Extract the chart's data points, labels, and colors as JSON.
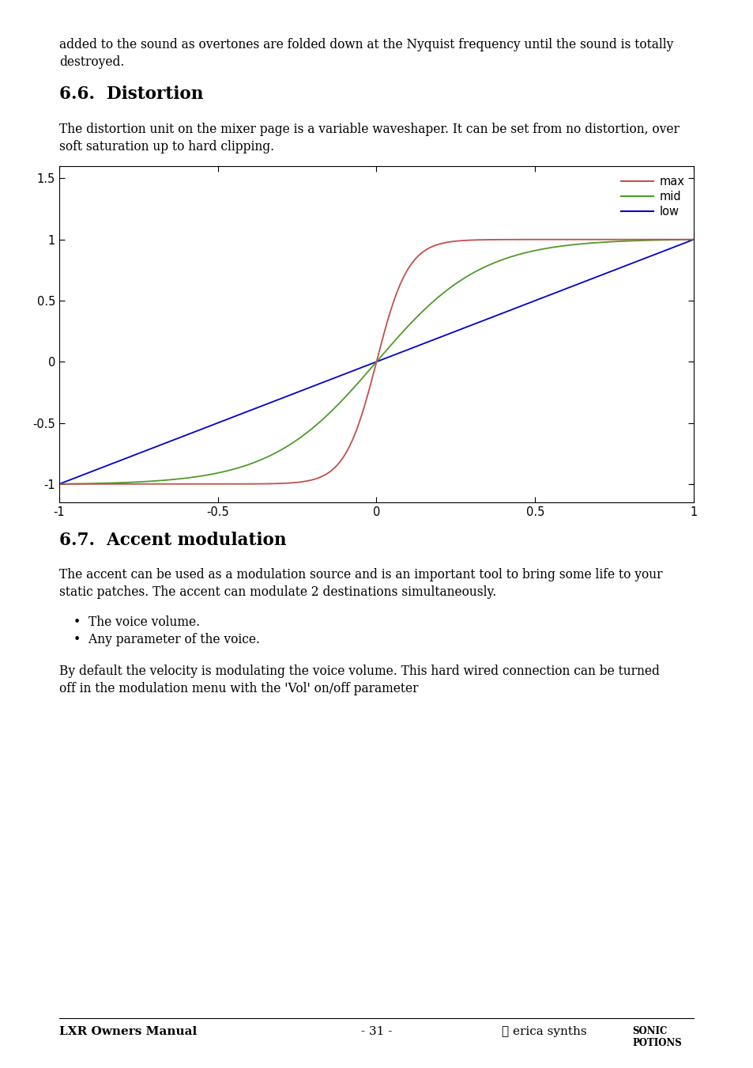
{
  "page_text_top_line1": "added to the sound as overtones are folded down at the Nyquist frequency until the sound is totally",
  "page_text_top_line2": "destroyed.",
  "section_66_title": "6.6.  Distortion",
  "section_66_body_line1": "The distortion unit on the mixer page is a variable waveshaper. It can be set from no distortion, over",
  "section_66_body_line2": "soft saturation up to hard clipping.",
  "section_67_title": "6.7.  Accent modulation",
  "section_67_body_line1": "The accent can be used as a modulation source and is an important tool to bring some life to your",
  "section_67_body_line2": "static patches. The accent can modulate 2 destinations simultaneously.",
  "bullet1": "The voice volume.",
  "bullet2": "Any parameter of the voice.",
  "section_67_body2_line1": "By default the velocity is modulating the voice volume. This hard wired connection can be turned",
  "section_67_body2_line2": "off in the modulation menu with the 'Vol' on/off parameter",
  "footer_left": "LXR Owners Manual",
  "footer_center": "- 31 -",
  "xlim": [
    -1,
    1
  ],
  "ylim": [
    -1.15,
    1.6
  ],
  "yticks": [
    -1,
    -0.5,
    0,
    0.5,
    1,
    1.5
  ],
  "xticks": [
    -1,
    -0.5,
    0,
    0.5,
    1
  ],
  "color_max": "#c0504d",
  "color_mid": "#4f9a29",
  "color_low": "#0000cd",
  "legend_labels": [
    "max",
    "mid",
    "low"
  ],
  "background": "#ffffff",
  "k_max": 10.0,
  "k_mid": 3.0
}
